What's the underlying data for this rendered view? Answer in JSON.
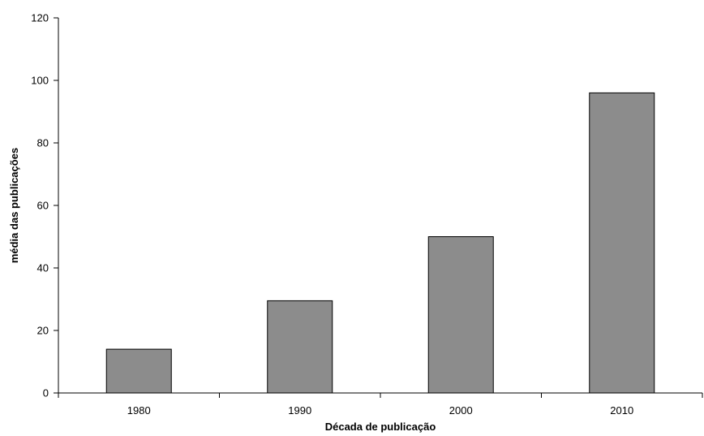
{
  "chart_data": {
    "type": "bar",
    "title": "",
    "xlabel": "Década de publicação",
    "ylabel": "média das publicações",
    "categories": [
      "1980",
      "1990",
      "2000",
      "2010"
    ],
    "values": [
      14,
      29.5,
      50,
      96
    ],
    "ylim": [
      0,
      120
    ],
    "yticks": [
      0,
      20,
      40,
      60,
      80,
      100,
      120
    ],
    "grid": false,
    "legend": "none",
    "colors": {
      "bar_fill": "#8c8c8c",
      "bar_stroke": "#000000",
      "axis": "#000000"
    }
  }
}
